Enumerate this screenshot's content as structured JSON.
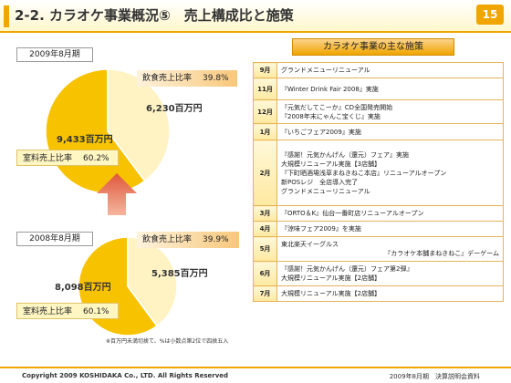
{
  "header": {
    "title": "2-2. カラオケ事業概況⑤　売上構成比と施策",
    "page_number": "15"
  },
  "charts": [
    {
      "period": "2009年8月期",
      "food_label": "飲食売上比率",
      "food_pct": "39.8%",
      "food_value": "6,230百万円",
      "room_label": "室料売上比率",
      "room_pct": "60.2%",
      "room_value": "9,433百万円",
      "food_share": 39.8
    },
    {
      "period": "2008年8月期",
      "food_label": "飲食売上比率",
      "food_pct": "39.9%",
      "food_value": "5,385百万円",
      "room_label": "室料売上比率",
      "room_pct": "60.1%",
      "room_value": "8,098百万円",
      "food_share": 39.9
    }
  ],
  "note": "※百万円未満切捨て、%は小数点第2位で四捨五入",
  "measures": {
    "title": "カラオケ事業の主な施策",
    "rows": [
      {
        "month": "9月",
        "lines": [
          "グランドメニューリニューアル"
        ]
      },
      {
        "month": "11月",
        "lines": [
          "『Winter Drink Fair 2008』実施"
        ]
      },
      {
        "month": "12月",
        "lines": [
          "『元気だしてこーか』CD全国発売開始",
          "『2008年末にゃんこ宝くじ』実施"
        ]
      },
      {
        "month": "1月",
        "lines": [
          "『いちごフェア2009』実施"
        ]
      },
      {
        "month": "2月",
        "lines": [
          "『感謝！元気かんげん（還元）フェア』実施",
          "大規模リニューアル実施【3店舗】",
          "『下町晒酒場浅草まねきねこ本店』リニューアルオープン",
          "新POSレジ　全店導入完了",
          "グランドメニューリニューアル"
        ]
      },
      {
        "month": "3月",
        "lines": [
          "『ORTO＆K』仙台一番町店リニューアルオープン"
        ]
      },
      {
        "month": "4月",
        "lines": [
          "『涼味フェア2009』を実施"
        ]
      },
      {
        "month": "5月",
        "lines": [
          "東北楽天イーグルス",
          "『カラオケ本舗まねきねこ』デーゲーム"
        ]
      },
      {
        "month": "6月",
        "lines": [
          "『感謝！元気かんげん（還元）フェア第2弾』",
          "大規模リニューアル実施【2店舗】"
        ]
      },
      {
        "month": "7月",
        "lines": [
          "大規模リニューアル実施【2店舗】"
        ]
      }
    ]
  },
  "footer": {
    "copyright": "Copyright 2009 KOSHIDAKA Co., LTD. All Rights Reserved",
    "right": "2009年8月期　決算説明会資料"
  },
  "colors": {
    "accent": "#f0a500",
    "pie_room": "#f7c200",
    "pie_food": "#fff3c4"
  }
}
